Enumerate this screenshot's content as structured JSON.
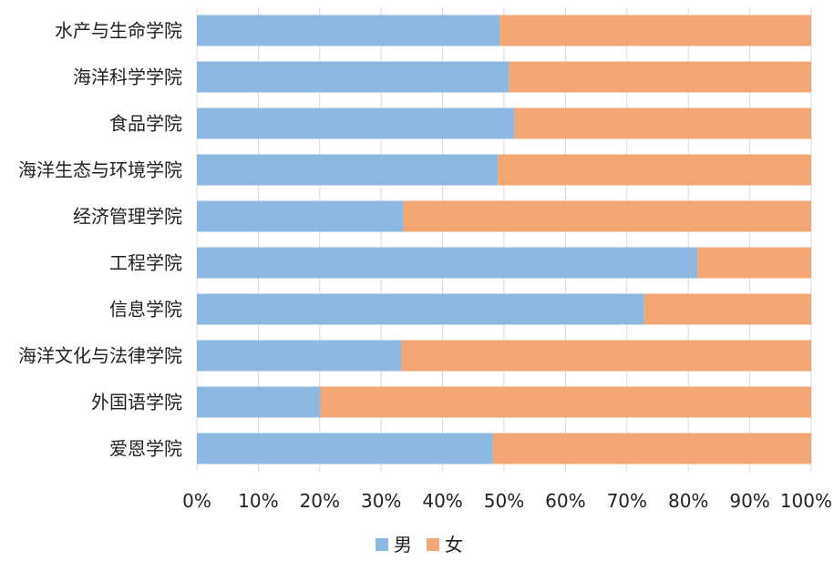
{
  "chart_data": {
    "type": "bar",
    "orientation": "horizontal",
    "stacked": "percent",
    "categories": [
      "水产与生命学院",
      "海洋科学学院",
      "食品学院",
      "海洋生态与环境学院",
      "经济管理学院",
      "工程学院",
      "信息学院",
      "海洋文化与法律学院",
      "外国语学院",
      "爱恩学院"
    ],
    "series": [
      {
        "name": "男",
        "color": "#8db8e1",
        "values": [
          49.3,
          50.8,
          51.7,
          49.0,
          33.6,
          81.5,
          72.8,
          33.3,
          20.1,
          48.2
        ]
      },
      {
        "name": "女",
        "color": "#f2a673",
        "values": [
          50.7,
          49.2,
          48.3,
          51.0,
          66.4,
          18.5,
          27.2,
          66.7,
          79.9,
          51.8
        ]
      }
    ],
    "xlim": [
      0,
      100
    ],
    "xticks": [
      "0%",
      "10%",
      "20%",
      "30%",
      "40%",
      "50%",
      "60%",
      "70%",
      "80%",
      "90%",
      "100%"
    ],
    "xtick_values": [
      0,
      10,
      20,
      30,
      40,
      50,
      60,
      70,
      80,
      90,
      100
    ],
    "grid": true,
    "legend_position": "bottom"
  }
}
